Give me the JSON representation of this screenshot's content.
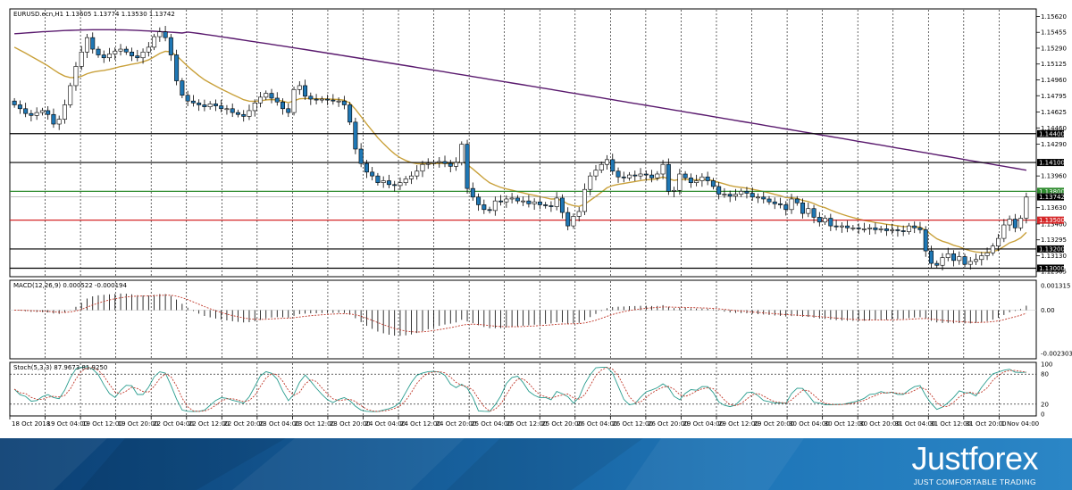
{
  "chart_data": [
    {
      "type": "candlestick",
      "title": "EURUSD.ecn,H1  1.13605 1.13774 1.13530 1.13742",
      "price_axis_labels": [
        "1.15620",
        "1.15455",
        "1.15290",
        "1.15125",
        "1.14960",
        "1.14795",
        "1.14625",
        "1.14460",
        "1.14290",
        "1.13960",
        "1.13630",
        "1.13460",
        "1.13295",
        "1.13130",
        "1.12965"
      ],
      "ylim": [
        1.1293,
        1.1568
      ],
      "horizontal_levels": [
        {
          "label": "1.14400",
          "value": 1.144,
          "color": "#000000"
        },
        {
          "label": "1.14100",
          "value": 1.141,
          "color": "#000000"
        },
        {
          "label": "1.13800",
          "value": 1.138,
          "color": "#2e8b2e"
        },
        {
          "label": "1.13500",
          "value": 1.135,
          "color": "#d62728"
        },
        {
          "label": "1.13200",
          "value": 1.132,
          "color": "#000000"
        },
        {
          "label": "1.13000",
          "value": 1.13,
          "color": "#000000"
        }
      ],
      "current_price": {
        "label": "1.13742",
        "value": 1.13742
      },
      "colors": {
        "bull": "#ffffff",
        "bear": "#1f77b4",
        "ma_fast": "#c9a13b",
        "ma_slow": "#5a1a6e"
      },
      "close": [
        1.147,
        1.1466,
        1.1461,
        1.1459,
        1.1462,
        1.1464,
        1.146,
        1.145,
        1.1455,
        1.147,
        1.149,
        1.151,
        1.1525,
        1.154,
        1.1528,
        1.1522,
        1.1519,
        1.1523,
        1.1526,
        1.1528,
        1.1525,
        1.1521,
        1.1519,
        1.1525,
        1.153,
        1.1541,
        1.1546,
        1.154,
        1.1522,
        1.1495,
        1.148,
        1.1474,
        1.1472,
        1.147,
        1.1468,
        1.1471,
        1.1469,
        1.1466,
        1.1466,
        1.1462,
        1.146,
        1.1458,
        1.1464,
        1.1472,
        1.1478,
        1.1482,
        1.1477,
        1.1473,
        1.1466,
        1.1462,
        1.1486,
        1.149,
        1.1479,
        1.1476,
        1.1475,
        1.1476,
        1.1475,
        1.1474,
        1.1474,
        1.147,
        1.1452,
        1.1424,
        1.1409,
        1.14,
        1.1396,
        1.1389,
        1.1391,
        1.1387,
        1.1386,
        1.1389,
        1.1393,
        1.1396,
        1.1401,
        1.1408,
        1.1409,
        1.141,
        1.1411,
        1.1409,
        1.1406,
        1.141,
        1.1429,
        1.1383,
        1.1374,
        1.1366,
        1.1361,
        1.136,
        1.137,
        1.1369,
        1.1372,
        1.1373,
        1.137,
        1.137,
        1.1367,
        1.1369,
        1.1366,
        1.1365,
        1.1364,
        1.1373,
        1.1358,
        1.1344,
        1.1354,
        1.1359,
        1.1382,
        1.1396,
        1.1402,
        1.1408,
        1.1413,
        1.1401,
        1.1395,
        1.1394,
        1.1397,
        1.1396,
        1.1398,
        1.1397,
        1.1394,
        1.1398,
        1.1408,
        1.138,
        1.1381,
        1.1398,
        1.1394,
        1.1389,
        1.1391,
        1.1395,
        1.1391,
        1.1385,
        1.1377,
        1.1377,
        1.1375,
        1.1377,
        1.138,
        1.1378,
        1.1374,
        1.1374,
        1.1372,
        1.1369,
        1.1367,
        1.1366,
        1.1361,
        1.1372,
        1.1368,
        1.1357,
        1.1362,
        1.1353,
        1.1348,
        1.1352,
        1.1344,
        1.1343,
        1.1344,
        1.1342,
        1.1342,
        1.1341,
        1.1341,
        1.1342,
        1.134,
        1.1341,
        1.1339,
        1.134,
        1.1339,
        1.1338,
        1.1344,
        1.1342,
        1.134,
        1.1318,
        1.1305,
        1.1303,
        1.1311,
        1.1315,
        1.1308,
        1.1312,
        1.1304,
        1.1307,
        1.1309,
        1.1313,
        1.1316,
        1.1323,
        1.1331,
        1.1345,
        1.1351,
        1.1342,
        1.1352,
        1.1374
      ]
    },
    {
      "type": "macd",
      "title": "MACD(12,26,9) 0.000522 -0.000194",
      "axis_labels": [
        "0.001315",
        "0.00",
        "-0.002303"
      ],
      "ylim": [
        -0.0025,
        0.0015
      ]
    },
    {
      "type": "stochastic",
      "title": "Stoch(5,3,3) 87.9673 81.9250",
      "axis_labels": [
        "100",
        "80",
        "20",
        "0"
      ],
      "ylim": [
        0,
        100
      ]
    }
  ],
  "x_axis_labels": [
    "18 Oct 2018",
    "19 Oct 04:00",
    "19 Oct 12:00",
    "19 Oct 20:00",
    "22 Oct 04:00",
    "22 Oct 12:00",
    "22 Oct 20:00",
    "23 Oct 04:00",
    "23 Oct 12:00",
    "23 Oct 20:00",
    "24 Oct 04:00",
    "24 Oct 12:00",
    "24 Oct 20:00",
    "25 Oct 04:00",
    "25 Oct 12:00",
    "25 Oct 20:00",
    "26 Oct 04:00",
    "26 Oct 12:00",
    "26 Oct 20:00",
    "29 Oct 04:00",
    "29 Oct 12:00",
    "29 Oct 20:00",
    "30 Oct 04:00",
    "30 Oct 12:00",
    "30 Oct 20:00",
    "31 Oct 04:00",
    "31 Oct 12:00",
    "31 Oct 20:00",
    "1 Nov 04:00"
  ],
  "banner": {
    "logo": "Justforex",
    "tagline": "JUST COMFORTABLE TRADING"
  }
}
